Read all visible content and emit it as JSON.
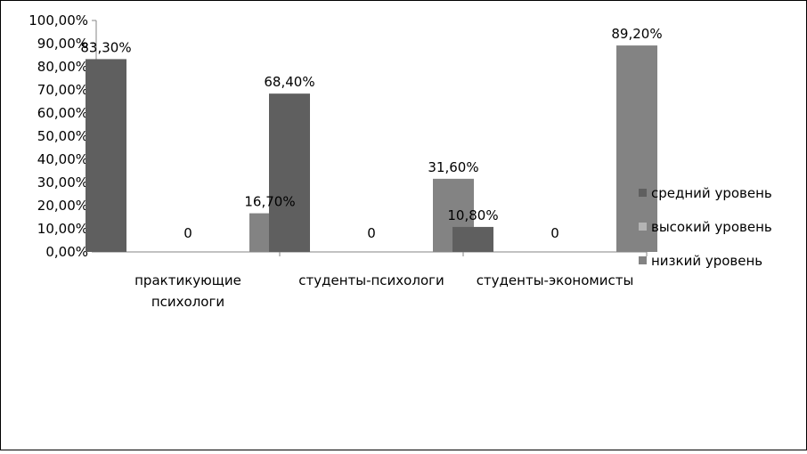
{
  "chart_data": {
    "type": "bar",
    "categories": [
      [
        "практикующие",
        "психологи"
      ],
      [
        "студенты-психологи"
      ],
      [
        "студенты-экономисты"
      ]
    ],
    "series": [
      {
        "name": "средний уровень",
        "color": "#5f5f5f",
        "values": [
          83.3,
          68.4,
          10.8
        ],
        "labels": [
          "83,30%",
          "68,40%",
          "10,80%"
        ]
      },
      {
        "name": "высокий уровень",
        "color": "#b4b4b4",
        "values": [
          0,
          0,
          0
        ],
        "labels": [
          "0",
          "0",
          "0"
        ]
      },
      {
        "name": "низкий уровень",
        "color": "#838383",
        "values": [
          16.7,
          31.6,
          89.2
        ],
        "labels": [
          "16,70%",
          "31,60%",
          "89,20%"
        ]
      }
    ],
    "y_ticks": [
      "0,00%",
      "10,00%",
      "20,00%",
      "30,00%",
      "40,00%",
      "50,00%",
      "60,00%",
      "70,00%",
      "80,00%",
      "90,00%",
      "100,00%"
    ],
    "ylim": [
      0,
      100
    ],
    "grid": false,
    "legend_position": "right"
  }
}
